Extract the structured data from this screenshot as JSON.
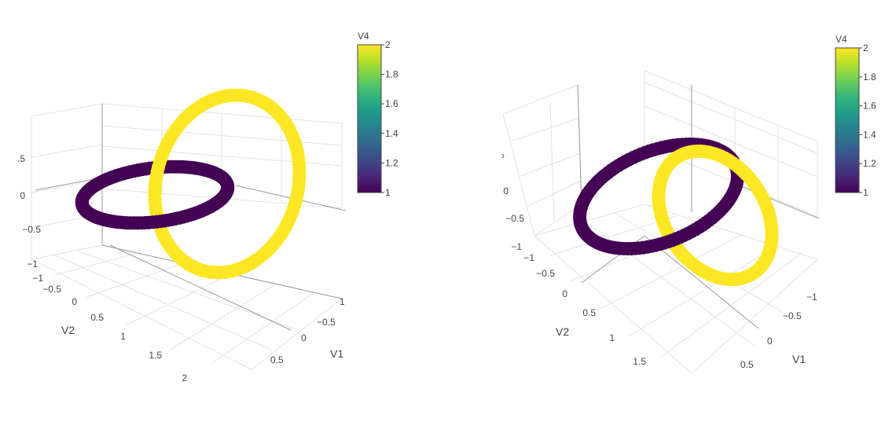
{
  "colors": {
    "low": "#440154",
    "high": "#fde725",
    "grid": "#e2e2e2",
    "axis": "#9a9a9a",
    "text": "#444444"
  },
  "colorbar_stops": [
    "#440154",
    "#482878",
    "#3e4989",
    "#31688e",
    "#26828e",
    "#1f9e89",
    "#35b779",
    "#6ece58",
    "#b5de2b",
    "#fde725"
  ],
  "chart_data": [
    {
      "type": "scatter3d",
      "title": "",
      "axes": {
        "x": {
          "label": "V1",
          "ticks": [
            "−0.5",
            "0",
            "0.5"
          ],
          "edge_tick_partial": "1"
        },
        "y": {
          "label": "V2",
          "ticks": [
            "−1",
            "−0.5",
            "0",
            "0.5",
            "1",
            "1.5"
          ],
          "edge_tick_partial": "2"
        },
        "z": {
          "label": "",
          "ticks": [
            "−1",
            "−0.5",
            "0",
            ".5"
          ]
        }
      },
      "series": [
        {
          "value": 1,
          "shape": "ring",
          "center": [
            0,
            0,
            0
          ],
          "radius": 1,
          "plane": "xy"
        },
        {
          "value": 2,
          "shape": "ring",
          "center": [
            1,
            0,
            0
          ],
          "radius": 1,
          "plane": "xz"
        }
      ],
      "colorbar": {
        "title": "V4",
        "ticks": [
          "1",
          "1.2",
          "1.4",
          "1.6",
          "1.8",
          "2"
        ],
        "range": [
          1,
          2
        ]
      }
    },
    {
      "type": "scatter3d",
      "title": "",
      "axes": {
        "x": {
          "label": "V1",
          "ticks": [
            "−1",
            "−0.5",
            "0",
            "0.5"
          ]
        },
        "y": {
          "label": "V2",
          "ticks": [
            "−1",
            "−0.5",
            "0",
            "0.5",
            "1",
            "1.5"
          ]
        },
        "z": {
          "label": "",
          "ticks": [
            "−0.5",
            "0"
          ],
          "edge_tick_partial": "›"
        }
      },
      "series": [
        {
          "value": 1,
          "shape": "ring",
          "center": [
            0,
            0,
            0
          ],
          "radius": 1,
          "plane": "xy"
        },
        {
          "value": 2,
          "shape": "ring",
          "center": [
            1,
            0,
            0
          ],
          "radius": 1,
          "plane": "xz"
        }
      ],
      "colorbar": {
        "title": "V4",
        "ticks": [
          "1",
          "1.2",
          "1.4",
          "1.6",
          "1.8",
          "2"
        ],
        "range": [
          1,
          2
        ]
      }
    }
  ]
}
